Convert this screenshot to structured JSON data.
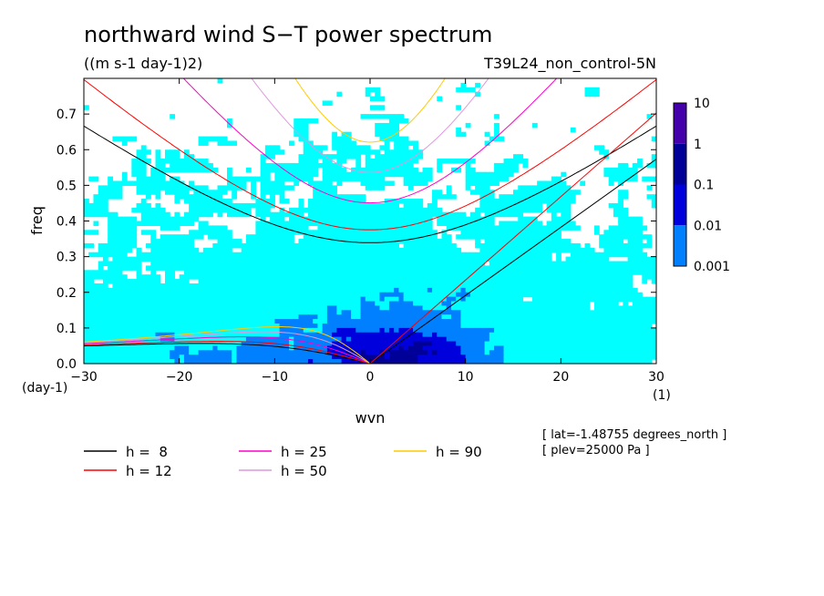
{
  "chart_data": {
    "type": "heatmap",
    "title": "northward wind S−T power spectrum",
    "subtitle": "((m s-1 day-1)2)",
    "run_label": "T39L24_non_control-5N",
    "xlabel": "wvn",
    "ylabel": "freq",
    "x_unit": "(1)",
    "y_unit": "(day-1)",
    "xlim": [
      -30,
      30
    ],
    "ylim": [
      0,
      0.8
    ],
    "x_ticks": [
      -30,
      -20,
      -10,
      0,
      10,
      20,
      30
    ],
    "x_tick_labels": [
      "−30",
      "−20",
      "−10",
      "0",
      "10",
      "20",
      "30"
    ],
    "y_ticks": [
      0,
      0.1,
      0.2,
      0.3,
      0.4,
      0.5,
      0.6,
      0.7
    ],
    "y_tick_labels": [
      "0.0",
      "0.1",
      "0.2",
      "0.3",
      "0.4",
      "0.5",
      "0.6",
      "0.7"
    ],
    "colorbar": {
      "labels": [
        "10",
        "1",
        "0.1",
        "0.01",
        "0.001"
      ],
      "levels": [
        0.001,
        0.01,
        0.1,
        1,
        10
      ],
      "colors": [
        "#00ffff",
        "#0080ff",
        "#0000dd",
        "#000099",
        "#4400aa"
      ]
    },
    "curves": [
      {
        "label": "h =  8",
        "h": 8,
        "color": "#000000"
      },
      {
        "label": "h = 12",
        "h": 12,
        "color": "#ff0000"
      },
      {
        "label": "h = 25",
        "h": 25,
        "color": "#ff00cc"
      },
      {
        "label": "h = 50",
        "h": 50,
        "color": "#dd99dd"
      },
      {
        "label": "h = 90",
        "h": 90,
        "color": "#ffcc00"
      }
    ],
    "info": [
      "[ lat=-1.48755 degrees_north ]",
      "[ plev=25000 Pa ]"
    ]
  }
}
